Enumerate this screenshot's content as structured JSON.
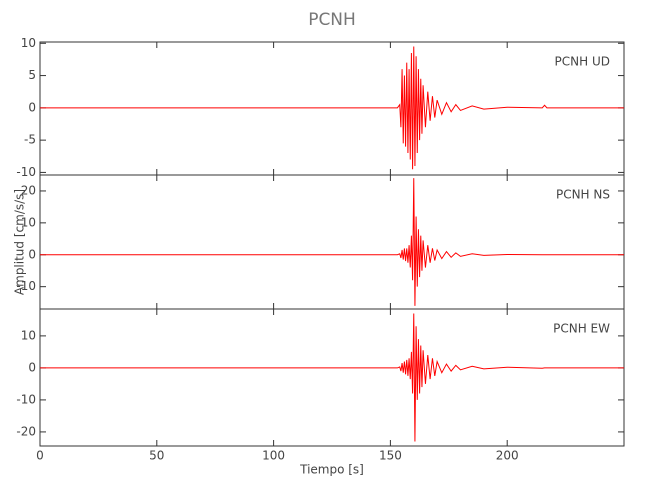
{
  "chart_data": [
    {
      "type": "line",
      "title": "PCNH",
      "series": [
        {
          "name": "PCNH   UD",
          "color": "#ff0000",
          "values": [
            0,
            0,
            0,
            0,
            0.5,
            -3,
            6,
            -5.5,
            5,
            -6,
            7,
            -7,
            6,
            -8,
            8.5,
            -9.5,
            9.5,
            -9,
            8,
            -7,
            6,
            -5,
            4.5,
            -4,
            3.5,
            -3,
            2.5,
            -2,
            1.8,
            -1.5,
            1.2,
            -1,
            0.8,
            -0.6,
            0.5,
            -0.4,
            0.3,
            -0.2,
            0.1,
            0,
            0.4,
            0,
            0
          ]
        }
      ],
      "x": [
        0,
        50,
        100,
        153,
        154,
        154.5,
        155,
        155.5,
        156,
        156.5,
        157,
        157.5,
        158,
        158.5,
        159,
        159.5,
        160,
        160.5,
        161,
        161.5,
        162,
        162.5,
        163,
        163.5,
        164,
        165,
        166,
        167,
        168,
        169,
        170,
        172,
        174,
        176,
        178,
        180,
        185,
        190,
        200,
        215,
        216,
        217,
        250
      ],
      "xlim": [
        0,
        250
      ],
      "xticks": [
        0,
        50,
        100,
        150,
        200
      ],
      "ylim": [
        -10.4,
        10.2
      ],
      "yticks": [
        -10,
        -5,
        0,
        5,
        10
      ]
    },
    {
      "type": "line",
      "ylabel": "Amplitud [cm/s/s]",
      "series": [
        {
          "name": "PCNH   NS",
          "color": "#ff0000",
          "values": [
            0,
            0,
            0,
            0,
            0.3,
            -1,
            1.5,
            -1.5,
            2,
            -2,
            2,
            -2.5,
            3,
            -4,
            6,
            -8,
            24,
            -16,
            12,
            -10,
            8,
            -7,
            6,
            -5,
            4.5,
            -4,
            3,
            -2.5,
            2,
            -1.8,
            1.5,
            -1.2,
            1,
            -0.8,
            0.6,
            -0.5,
            0.3,
            -0.2,
            0.1,
            0,
            0,
            0,
            0
          ]
        }
      ],
      "x": [
        0,
        50,
        100,
        153,
        154,
        154.5,
        155,
        155.5,
        156,
        156.5,
        157,
        157.5,
        158,
        158.5,
        159,
        159.5,
        160,
        160.5,
        161,
        161.5,
        162,
        162.5,
        163,
        163.5,
        164,
        165,
        166,
        167,
        168,
        169,
        170,
        172,
        174,
        176,
        178,
        180,
        185,
        190,
        200,
        215,
        216,
        217,
        250
      ],
      "xlim": [
        0,
        250
      ],
      "xticks": [
        0,
        50,
        100,
        150,
        200
      ],
      "ylim": [
        -17,
        25
      ],
      "yticks": [
        -10,
        0,
        10,
        20
      ]
    },
    {
      "type": "line",
      "xlabel": "Tiempo [s]",
      "series": [
        {
          "name": "PCNH   EW",
          "color": "#ff0000",
          "values": [
            0,
            0,
            0,
            0,
            0.3,
            -1,
            1.5,
            -1.5,
            2,
            -2,
            2.5,
            -2.5,
            3,
            -3.5,
            5,
            -8,
            17,
            -23,
            13,
            -10,
            9,
            -8,
            7,
            -6,
            5.5,
            -5,
            4,
            -3.5,
            3,
            -2.5,
            2,
            -1.5,
            1.2,
            -1,
            0.8,
            -0.6,
            0.5,
            -0.3,
            0.2,
            -0.1,
            0,
            0,
            0
          ]
        }
      ],
      "x": [
        0,
        50,
        100,
        153,
        154,
        154.5,
        155,
        155.5,
        156,
        156.5,
        157,
        157.5,
        158,
        158.5,
        159,
        159.5,
        160,
        160.5,
        161,
        161.5,
        162,
        162.5,
        163,
        163.5,
        164,
        165,
        166,
        167,
        168,
        169,
        170,
        172,
        174,
        176,
        178,
        180,
        185,
        190,
        200,
        215,
        216,
        217,
        250
      ],
      "xlim": [
        0,
        250
      ],
      "xticks": [
        0,
        50,
        100,
        150,
        200
      ],
      "ylim": [
        -24.4,
        18.4
      ],
      "yticks": [
        -20,
        -10,
        0,
        10
      ]
    }
  ]
}
